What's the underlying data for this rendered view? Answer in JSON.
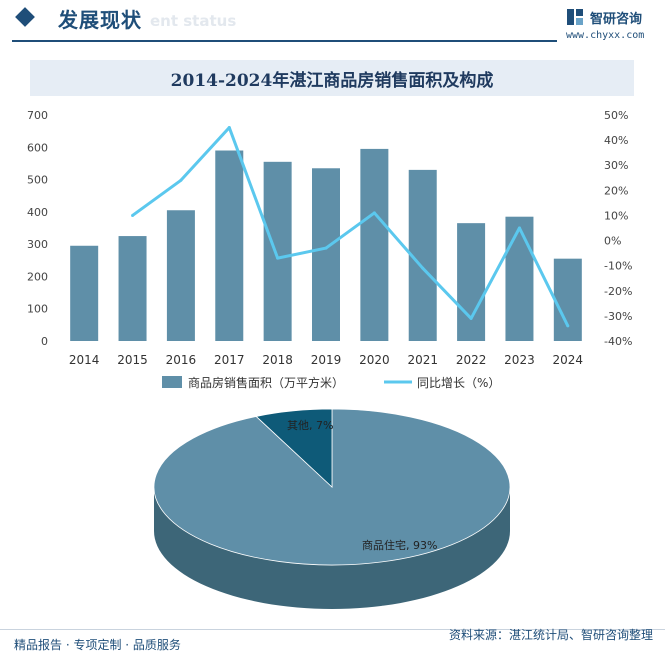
{
  "header": {
    "section_title": "发展现状",
    "ghost_text": "ent status",
    "logo_name": "智研咨询",
    "logo_url": "www.chyxx.com"
  },
  "chart_title": "2014-2024年湛江商品房销售面积及构成",
  "colors": {
    "bar": "#5f8fa8",
    "line": "#5bc8ee",
    "pie_main": "#5f8fa8",
    "pie_other": "#0e5a78",
    "pie_side": "#3d6678"
  },
  "chart_data": [
    {
      "type": "bar",
      "categories": [
        "2014",
        "2015",
        "2016",
        "2017",
        "2018",
        "2019",
        "2020",
        "2021",
        "2022",
        "2023",
        "2024"
      ],
      "series": [
        {
          "name": "商品房销售面积（万平方米）",
          "type": "bar",
          "axis": "left",
          "values": [
            295,
            325,
            405,
            590,
            555,
            535,
            595,
            530,
            365,
            385,
            255
          ]
        },
        {
          "name": "同比增长（%）",
          "type": "line",
          "axis": "right",
          "values": [
            null,
            10,
            24,
            45,
            -7,
            -3,
            11,
            -11,
            -31,
            5,
            -34
          ]
        }
      ],
      "y_left": {
        "min": 0,
        "max": 700,
        "ticks": [
          "0",
          "100",
          "200",
          "300",
          "400",
          "500",
          "600",
          "700"
        ]
      },
      "y_right": {
        "min": -40,
        "max": 50,
        "ticks": [
          "-40%",
          "-30%",
          "-20%",
          "-10%",
          "0%",
          "10%",
          "20%",
          "30%",
          "40%",
          "50%"
        ]
      },
      "legend_position": "bottom"
    },
    {
      "type": "pie",
      "slices": [
        {
          "label": "商品住宅",
          "value": 93,
          "text": "商品住宅, 93%"
        },
        {
          "label": "其他",
          "value": 7,
          "text": "其他, 7%"
        }
      ]
    }
  ],
  "footer": {
    "left": "精品报告 · 专项定制 · 品质服务",
    "right": "资料来源：湛江统计局、智研咨询整理"
  }
}
